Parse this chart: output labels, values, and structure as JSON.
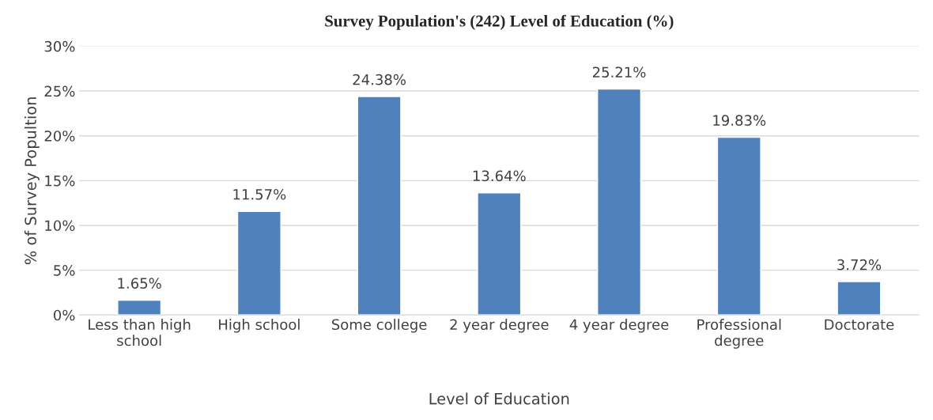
{
  "chart_data": {
    "type": "bar",
    "title": "Survey Population's (242) Level of Education (%)",
    "xlabel": "Level of Education",
    "ylabel": "% of Survey Popultion",
    "categories": [
      "Less than high\nschool",
      "High school",
      "Some college",
      "2 year degree",
      "4 year degree",
      "Professional\ndegree",
      "Doctorate"
    ],
    "values": [
      1.65,
      11.57,
      24.38,
      13.64,
      25.21,
      19.83,
      3.72
    ],
    "value_labels": [
      "1.65%",
      "11.57%",
      "24.38%",
      "13.64%",
      "25.21%",
      "19.83%",
      "3.72%"
    ],
    "color": "#4f81bd",
    "ylim": [
      0,
      30
    ],
    "yticks": [
      {
        "value": 0,
        "label": "0%"
      },
      {
        "value": 5,
        "label": "5%"
      },
      {
        "value": 10,
        "label": "10%"
      },
      {
        "value": 15,
        "label": "15%"
      },
      {
        "value": 20,
        "label": "20%"
      },
      {
        "value": 25,
        "label": "25%"
      },
      {
        "value": 30,
        "label": "30%"
      }
    ],
    "grid": "y",
    "legend": false
  }
}
